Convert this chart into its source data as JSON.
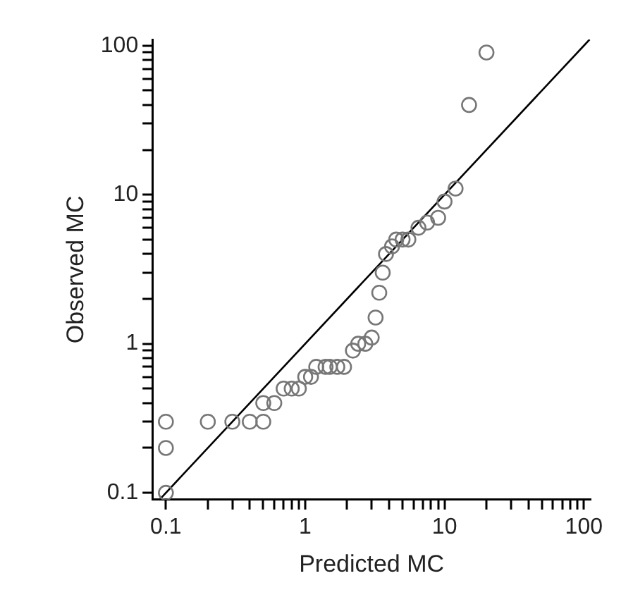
{
  "chart_data": {
    "type": "scatter",
    "xlabel": "Predicted MC",
    "ylabel": "Observed MC",
    "log": "xy",
    "grid": false,
    "legend": false,
    "marker": "circle",
    "xlim": [
      0.08,
      112
    ],
    "ylim": [
      0.09,
      110
    ],
    "xticks": [
      {
        "value": 0.1,
        "label": "0.1"
      },
      {
        "value": 0.2,
        "label": null
      },
      {
        "value": 0.3,
        "label": null
      },
      {
        "value": 0.4,
        "label": null
      },
      {
        "value": 0.5,
        "label": null
      },
      {
        "value": 0.6,
        "label": null
      },
      {
        "value": 0.7,
        "label": null
      },
      {
        "value": 0.8,
        "label": null
      },
      {
        "value": 0.9,
        "label": null
      },
      {
        "value": 1,
        "label": "1"
      },
      {
        "value": 2,
        "label": null
      },
      {
        "value": 3,
        "label": null
      },
      {
        "value": 4,
        "label": null
      },
      {
        "value": 5,
        "label": null
      },
      {
        "value": 6,
        "label": null
      },
      {
        "value": 7,
        "label": null
      },
      {
        "value": 8,
        "label": null
      },
      {
        "value": 9,
        "label": null
      },
      {
        "value": 10,
        "label": "10"
      },
      {
        "value": 20,
        "label": null
      },
      {
        "value": 30,
        "label": null
      },
      {
        "value": 40,
        "label": null
      },
      {
        "value": 50,
        "label": null
      },
      {
        "value": 60,
        "label": null
      },
      {
        "value": 70,
        "label": null
      },
      {
        "value": 80,
        "label": null
      },
      {
        "value": 90,
        "label": null
      },
      {
        "value": 100,
        "label": "100"
      }
    ],
    "yticks": [
      {
        "value": 0.1,
        "label": "0.1"
      },
      {
        "value": 0.2,
        "label": null
      },
      {
        "value": 0.3,
        "label": null
      },
      {
        "value": 0.4,
        "label": null
      },
      {
        "value": 0.5,
        "label": null
      },
      {
        "value": 0.6,
        "label": null
      },
      {
        "value": 0.7,
        "label": null
      },
      {
        "value": 0.8,
        "label": null
      },
      {
        "value": 0.9,
        "label": null
      },
      {
        "value": 1,
        "label": "1"
      },
      {
        "value": 2,
        "label": null
      },
      {
        "value": 3,
        "label": null
      },
      {
        "value": 4,
        "label": null
      },
      {
        "value": 5,
        "label": null
      },
      {
        "value": 6,
        "label": null
      },
      {
        "value": 7,
        "label": null
      },
      {
        "value": 8,
        "label": null
      },
      {
        "value": 9,
        "label": null
      },
      {
        "value": 10,
        "label": "10"
      },
      {
        "value": 20,
        "label": null
      },
      {
        "value": 30,
        "label": null
      },
      {
        "value": 40,
        "label": null
      },
      {
        "value": 50,
        "label": null
      },
      {
        "value": 60,
        "label": null
      },
      {
        "value": 70,
        "label": null
      },
      {
        "value": 80,
        "label": null
      },
      {
        "value": 90,
        "label": null
      },
      {
        "value": 100,
        "label": "100"
      }
    ],
    "series": [
      {
        "type": "scatter",
        "color": "#777777",
        "x": [
          0.1,
          0.1,
          0.1,
          0.2,
          0.3,
          0.4,
          0.5,
          0.5,
          0.6,
          0.7,
          0.8,
          0.9,
          1,
          1.1,
          1.2,
          1.4,
          1.5,
          1.7,
          1.9,
          2.2,
          2.4,
          2.7,
          3,
          3.2,
          3.4,
          3.6,
          3.8,
          4.2,
          4.5,
          5,
          5.5,
          6.5,
          7.5,
          9,
          10,
          12,
          15,
          20
        ],
        "values": [
          0.3,
          0.2,
          0.1,
          0.3,
          0.3,
          0.3,
          0.3,
          0.4,
          0.4,
          0.5,
          0.5,
          0.5,
          0.6,
          0.6,
          0.7,
          0.7,
          0.7,
          0.7,
          0.7,
          0.9,
          1,
          1,
          1.1,
          1.5,
          2.2,
          3,
          4,
          4.5,
          5,
          5,
          5,
          6,
          6.5,
          7,
          9,
          11,
          40,
          90
        ]
      },
      {
        "type": "line",
        "color": "#000000",
        "marker": "none",
        "x": [
          0.09,
          110
        ],
        "values": [
          0.09,
          110
        ]
      }
    ]
  }
}
